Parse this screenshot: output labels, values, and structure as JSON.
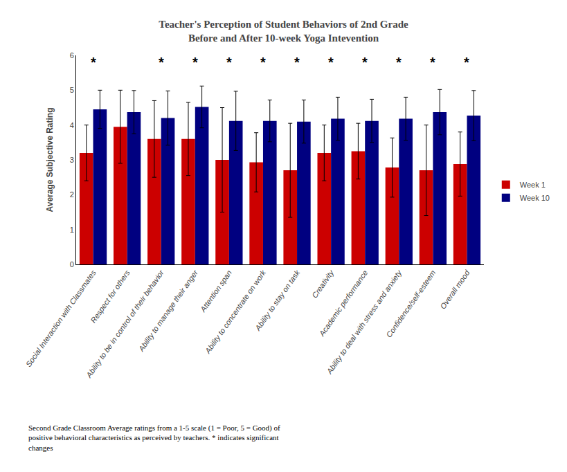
{
  "chart_data": {
    "type": "bar",
    "title": "Teacher's Perception of Student Behaviors of 2nd Grade\nBefore and After 10-week Yoga Intevention",
    "ylabel": "Average Subjective Rating",
    "categories": [
      "Social Interaction with Classmates",
      "Respect for others",
      "Ability to be in control of their behavior",
      "Ability to manage their anger",
      "Attention span",
      "Ability to concentrate on work",
      "Ability to stay on task",
      "Creativity",
      "Academic performance",
      "Ability to deal with stress and anxiety",
      "Confidence/self-esteem",
      "Overall mood"
    ],
    "series": [
      {
        "name": "Week 1",
        "color": "#cc0000",
        "values": [
          3.2,
          3.95,
          3.6,
          3.6,
          3.0,
          2.93,
          2.7,
          3.2,
          3.25,
          2.78,
          2.7,
          2.88
        ],
        "errors": [
          0.8,
          1.05,
          1.1,
          1.05,
          1.5,
          0.85,
          1.35,
          0.8,
          0.8,
          0.85,
          1.3,
          0.92
        ]
      },
      {
        "name": "Week 10",
        "color": "#000080",
        "values": [
          4.45,
          4.37,
          4.2,
          4.52,
          4.12,
          4.12,
          4.1,
          4.18,
          4.12,
          4.18,
          4.37,
          4.27
        ],
        "errors": [
          0.55,
          0.62,
          0.78,
          0.6,
          0.85,
          0.6,
          0.62,
          0.62,
          0.62,
          0.62,
          0.65,
          0.72
        ]
      }
    ],
    "ylim": [
      0,
      6
    ],
    "yticks": [
      0,
      1,
      2,
      3,
      4,
      5,
      6
    ],
    "grid": false,
    "legend": "right",
    "annotations": [
      {
        "text": "*",
        "x": "Social Interaction with Classmates",
        "y": 5.55
      },
      {
        "text": "*",
        "x": "Ability to be in control of their behavior",
        "y": 5.55
      },
      {
        "text": "*",
        "x": "Ability to manage their anger",
        "y": 5.55
      },
      {
        "text": "*",
        "x": "Attention span",
        "y": 5.55
      },
      {
        "text": "*",
        "x": "Ability to concentrate on work",
        "y": 5.55
      },
      {
        "text": "*",
        "x": "Ability to stay on task",
        "y": 5.55
      },
      {
        "text": "*",
        "x": "Creativity",
        "y": 5.55
      },
      {
        "text": "*",
        "x": "Academic performance",
        "y": 5.55
      },
      {
        "text": "*",
        "x": "Ability to deal with stress and anxiety",
        "y": 5.55
      },
      {
        "text": "*",
        "x": "Confidence/self-esteem",
        "y": 5.55
      },
      {
        "text": "*",
        "x": "Overall mood",
        "y": 5.55
      }
    ],
    "caption": "Second Grade Classroom Average ratings from a 1-5 scale (1 = Poor, 5 = Good) of\npositive behavioral characteristics as perceived by teachers. * indicates significant\nchanges"
  }
}
